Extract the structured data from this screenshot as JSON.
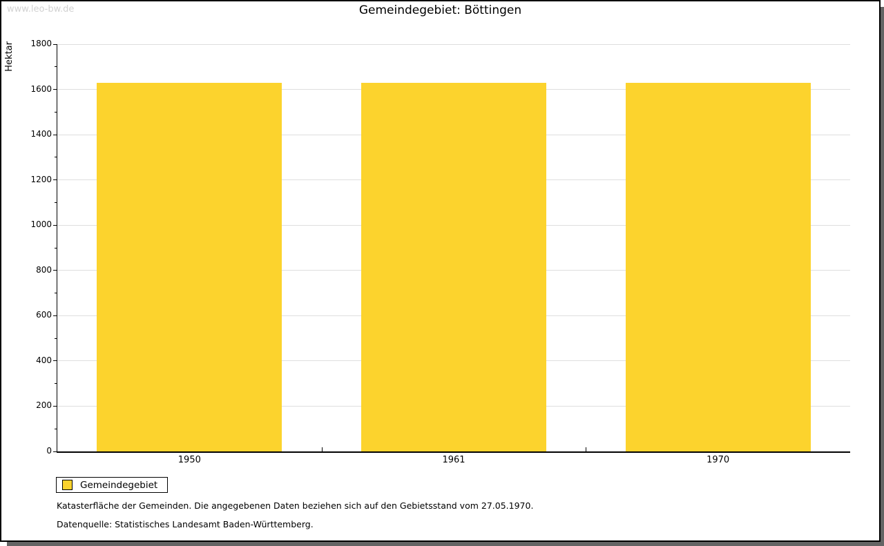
{
  "header": {
    "watermark": "www.leo-bw.de",
    "title": "Gemeindegebiet: Böttingen"
  },
  "chart_data": {
    "type": "bar",
    "title": "Gemeindegebiet: Böttingen",
    "xlabel": "",
    "ylabel": "Hektar",
    "categories": [
      "1950",
      "1961",
      "1970"
    ],
    "series": [
      {
        "name": "Gemeindegebiet",
        "values": [
          1630,
          1630,
          1630
        ]
      }
    ],
    "ylim": [
      0,
      1800
    ],
    "ytick_major_step": 200,
    "ytick_minor_step": 100,
    "grid": "horizontal gridlines at major ticks",
    "legend_position": "bottom-left",
    "bar_color": "#FCD32D"
  },
  "legend": {
    "items": [
      {
        "label": "Gemeindegebiet",
        "color": "#FCD32D"
      }
    ]
  },
  "footnotes": {
    "line1": "Katasterfläche der Gemeinden. Die angegebenen Daten beziehen sich auf den Gebietsstand vom 27.05.1970.",
    "line2": "Datenquelle: Statistisches Landesamt Baden-Württemberg."
  },
  "colors": {
    "bar": "#FCD32D",
    "grid": "#DEDEDE",
    "axis": "#000000",
    "watermark": "#D2D2D2",
    "shadow": "#646464",
    "background": "#FFFFFF"
  }
}
